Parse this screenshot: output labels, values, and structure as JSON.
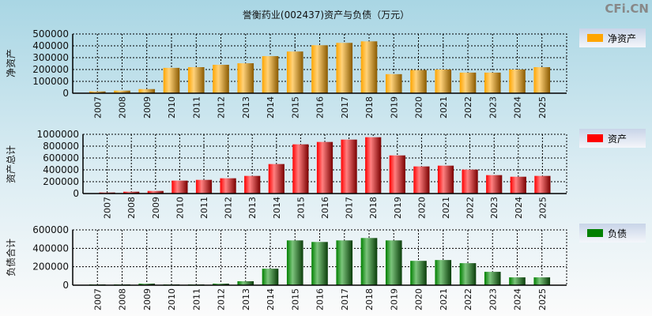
{
  "title": "誉衡药业(002437)资产与负债（万元）",
  "watermark": "CFi.CN",
  "chart_data": [
    {
      "type": "bar",
      "ylabel": "净资产",
      "legend": "净资产",
      "color": "#ffa500",
      "ylim": [
        0,
        500000
      ],
      "yticks": [
        0,
        100000,
        200000,
        300000,
        400000,
        500000
      ],
      "categories": [
        "2007",
        "2008",
        "2009",
        "2010",
        "2011",
        "2012",
        "2013",
        "2014",
        "2015",
        "2016",
        "2017",
        "2018",
        "2019",
        "2020",
        "2021",
        "2022",
        "2023",
        "2024",
        "2025"
      ],
      "values": [
        15000,
        22000,
        35000,
        214000,
        220000,
        240000,
        253000,
        313000,
        352000,
        405000,
        425000,
        438000,
        161000,
        196000,
        200000,
        174000,
        174000,
        200000,
        220000
      ]
    },
    {
      "type": "bar",
      "ylabel": "资产总计",
      "legend": "资产",
      "color": "#ff0000",
      "ylim": [
        0,
        1000000
      ],
      "yticks": [
        0,
        200000,
        400000,
        600000,
        800000,
        1000000
      ],
      "categories": [
        "2007",
        "2008",
        "2009",
        "2010",
        "2011",
        "2012",
        "2013",
        "2014",
        "2015",
        "2016",
        "2017",
        "2018",
        "2019",
        "2020",
        "2021",
        "2022",
        "2023",
        "2024",
        "2025"
      ],
      "values": [
        18000,
        31000,
        44000,
        218000,
        231000,
        258000,
        298000,
        498000,
        831000,
        871000,
        911000,
        951000,
        644000,
        458000,
        471000,
        404000,
        311000,
        284000,
        298000
      ]
    },
    {
      "type": "bar",
      "ylabel": "负债合计",
      "legend": "负债",
      "color": "#008000",
      "ylim": [
        0,
        600000
      ],
      "yticks": [
        0,
        200000,
        400000,
        600000
      ],
      "categories": [
        "2007",
        "2008",
        "2009",
        "2010",
        "2011",
        "2012",
        "2013",
        "2014",
        "2015",
        "2016",
        "2017",
        "2018",
        "2019",
        "2020",
        "2021",
        "2022",
        "2023",
        "2024",
        "2025"
      ],
      "values": [
        8500,
        8500,
        17000,
        8500,
        8500,
        17000,
        43000,
        179000,
        486000,
        469000,
        486000,
        512000,
        486000,
        264000,
        273000,
        239000,
        145000,
        85000,
        85000
      ]
    }
  ]
}
